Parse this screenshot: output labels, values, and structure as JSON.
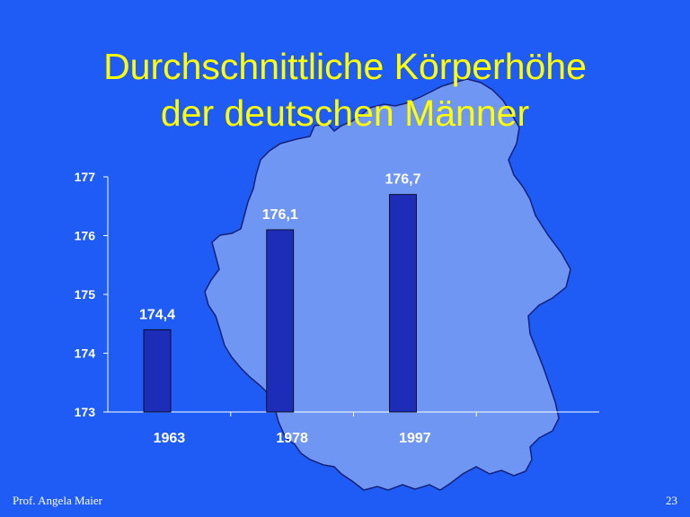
{
  "slide": {
    "title_line1": "Durchschnittliche Körperhöhe",
    "title_line2": "der deutschen Männer",
    "footer_author": "Prof. Angela Maier",
    "page_number": "23"
  },
  "colors": {
    "background": "#1f5cf5",
    "title": "#ffff00",
    "bar": "#1e2db8",
    "map": "#6e96f2",
    "text": "#ffffff"
  },
  "chart_data": {
    "type": "bar",
    "title": "Durchschnittliche Körperhöhe der deutschen Männer",
    "categories": [
      "1963",
      "1978",
      "1997"
    ],
    "values": [
      174.4,
      176.1,
      176.7
    ],
    "data_labels": [
      "174,4",
      "176,1",
      "176,7"
    ],
    "yticks": [
      "173",
      "174",
      "175",
      "176",
      "177"
    ],
    "ylim": [
      173,
      177
    ],
    "xlabel": "",
    "ylabel": "",
    "grid": false,
    "legend": false,
    "background_image": "germany-map"
  }
}
